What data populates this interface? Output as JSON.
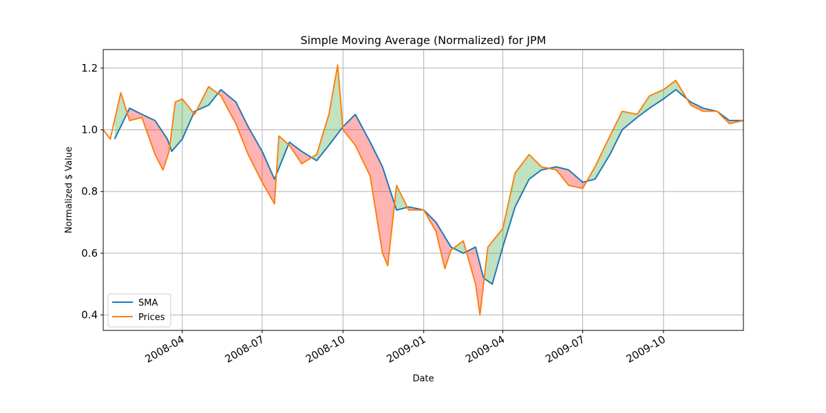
{
  "chart_data": {
    "type": "line",
    "title": "Simple Moving Average (Normalized) for JPM",
    "xlabel": "Date",
    "ylabel": "Normalized $ Value",
    "xlim": [
      "2008-01-02",
      "2009-12-31"
    ],
    "ylim": [
      0.35,
      1.26
    ],
    "x_ticks": [
      "2008-04",
      "2008-07",
      "2008-10",
      "2009-01",
      "2009-04",
      "2009-07",
      "2009-10"
    ],
    "y_ticks": [
      0.4,
      0.6,
      0.8,
      1.0,
      1.2
    ],
    "grid": true,
    "legend_position": "lower-left",
    "fill_between": {
      "above_color": "#2ca02c",
      "below_color": "#ff0000",
      "opacity": 0.3
    },
    "series": [
      {
        "name": "SMA",
        "color": "#1f77b4",
        "x": [
          "2008-01-02",
          "2008-01-15",
          "2008-02-01",
          "2008-02-15",
          "2008-03-01",
          "2008-03-15",
          "2008-03-20",
          "2008-04-01",
          "2008-04-15",
          "2008-05-01",
          "2008-05-15",
          "2008-06-01",
          "2008-06-15",
          "2008-07-01",
          "2008-07-15",
          "2008-08-01",
          "2008-08-15",
          "2008-09-01",
          "2008-09-15",
          "2008-10-01",
          "2008-10-15",
          "2008-11-01",
          "2008-11-15",
          "2008-12-01",
          "2008-12-15",
          "2009-01-01",
          "2009-01-15",
          "2009-02-01",
          "2009-02-15",
          "2009-03-01",
          "2009-03-10",
          "2009-03-20",
          "2009-04-01",
          "2009-04-15",
          "2009-05-01",
          "2009-05-15",
          "2009-06-01",
          "2009-06-15",
          "2009-07-01",
          "2009-07-15",
          "2009-08-01",
          "2009-08-15",
          "2009-09-01",
          "2009-09-15",
          "2009-10-01",
          "2009-10-15",
          "2009-11-01",
          "2009-11-15",
          "2009-12-01",
          "2009-12-15",
          "2009-12-31"
        ],
        "values": [
          null,
          0.97,
          1.07,
          1.05,
          1.03,
          0.97,
          0.93,
          0.97,
          1.06,
          1.08,
          1.13,
          1.09,
          1.01,
          0.93,
          0.84,
          0.96,
          0.93,
          0.9,
          0.95,
          1.01,
          1.05,
          0.96,
          0.88,
          0.74,
          0.75,
          0.74,
          0.7,
          0.62,
          0.6,
          0.62,
          0.52,
          0.5,
          0.62,
          0.75,
          0.84,
          0.87,
          0.88,
          0.87,
          0.83,
          0.84,
          0.92,
          1.0,
          1.04,
          1.07,
          1.1,
          1.13,
          1.09,
          1.07,
          1.06,
          1.03,
          1.03
        ]
      },
      {
        "name": "Prices",
        "color": "#ff7f0e",
        "x": [
          "2008-01-02",
          "2008-01-10",
          "2008-01-22",
          "2008-02-01",
          "2008-02-15",
          "2008-03-01",
          "2008-03-10",
          "2008-03-17",
          "2008-03-24",
          "2008-04-01",
          "2008-04-15",
          "2008-05-01",
          "2008-05-15",
          "2008-06-01",
          "2008-06-15",
          "2008-07-01",
          "2008-07-15",
          "2008-07-20",
          "2008-08-01",
          "2008-08-15",
          "2008-09-01",
          "2008-09-15",
          "2008-09-25",
          "2008-10-01",
          "2008-10-15",
          "2008-11-01",
          "2008-11-15",
          "2008-11-21",
          "2008-12-01",
          "2008-12-15",
          "2009-01-01",
          "2009-01-15",
          "2009-01-25",
          "2009-02-01",
          "2009-02-15",
          "2009-03-01",
          "2009-03-06",
          "2009-03-15",
          "2009-04-01",
          "2009-04-15",
          "2009-05-01",
          "2009-05-15",
          "2009-06-01",
          "2009-06-15",
          "2009-07-01",
          "2009-07-15",
          "2009-08-01",
          "2009-08-15",
          "2009-09-01",
          "2009-09-15",
          "2009-10-01",
          "2009-10-15",
          "2009-11-01",
          "2009-11-15",
          "2009-12-01",
          "2009-12-15",
          "2009-12-31"
        ],
        "values": [
          1.0,
          0.97,
          1.12,
          1.03,
          1.04,
          0.92,
          0.87,
          0.93,
          1.09,
          1.1,
          1.05,
          1.14,
          1.11,
          1.02,
          0.92,
          0.83,
          0.76,
          0.98,
          0.95,
          0.89,
          0.92,
          1.05,
          1.21,
          1.0,
          0.95,
          0.85,
          0.6,
          0.56,
          0.82,
          0.74,
          0.74,
          0.67,
          0.55,
          0.61,
          0.64,
          0.5,
          0.4,
          0.62,
          0.68,
          0.86,
          0.92,
          0.88,
          0.87,
          0.82,
          0.81,
          0.88,
          0.98,
          1.06,
          1.05,
          1.11,
          1.13,
          1.16,
          1.08,
          1.06,
          1.06,
          1.02,
          1.03
        ]
      }
    ]
  }
}
